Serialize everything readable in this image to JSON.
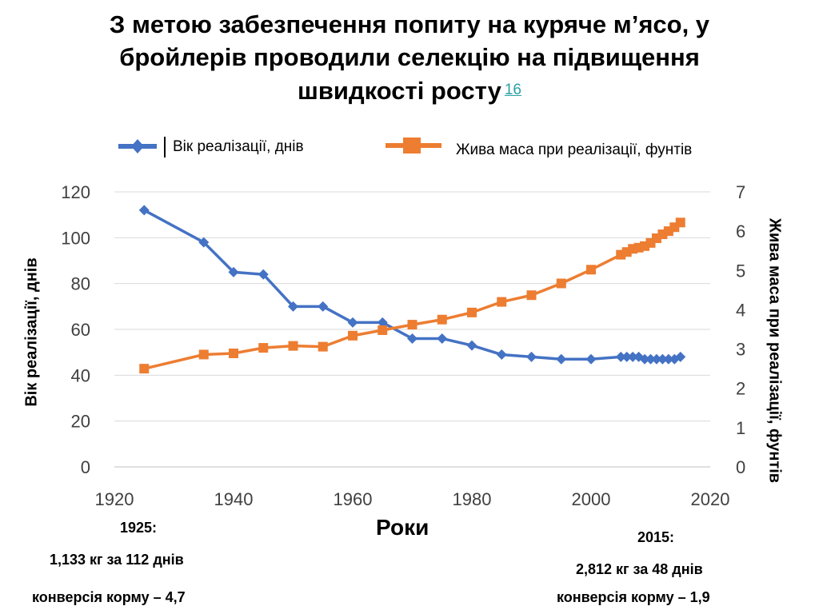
{
  "title": {
    "line1": "З метою забезпечення попиту на куряче м’ясо, у",
    "line2": "бройлерів проводили селекцію на підвищення",
    "line3": "швидкості росту",
    "ref": "16"
  },
  "notes": {
    "left_year": "1925:",
    "left_mass": "1,133 кг за 112 днів",
    "left_conv": "конверсія корму – 4,7",
    "right_year": "2015:",
    "right_mass": "2,812 кг за 48 днів",
    "right_conv": "конверсія корму – 1,9"
  },
  "colors": {
    "age": "#4472c4",
    "weight": "#ed7d31",
    "grid": "#d9d9d9",
    "ref": "#2aa1a4"
  },
  "chart_data": {
    "type": "line",
    "xlabel": "Роки",
    "ylabel": "Вік реалізації, днів",
    "y2label": "Жива маса при реалізації, фунтів",
    "xlim": [
      1920,
      2020
    ],
    "xticks": [
      1920,
      1940,
      1960,
      1980,
      2000,
      2020
    ],
    "ylim": [
      0,
      120
    ],
    "yticks": [
      0,
      20,
      40,
      60,
      80,
      100,
      120
    ],
    "y2lim": [
      0,
      7
    ],
    "y2ticks": [
      0,
      1,
      2,
      3,
      4,
      5,
      6,
      7
    ],
    "grid": true,
    "legend_position": "top",
    "series": [
      {
        "name": "Вік реалізації, днів",
        "axis": "left",
        "marker": "diamond",
        "color": "#4472c4",
        "x": [
          1925,
          1935,
          1940,
          1945,
          1950,
          1955,
          1960,
          1965,
          1970,
          1975,
          1980,
          1985,
          1990,
          1995,
          2000,
          2005,
          2006,
          2007,
          2008,
          2009,
          2010,
          2011,
          2012,
          2013,
          2014,
          2015
        ],
        "y": [
          112,
          98,
          85,
          84,
          70,
          70,
          63,
          63,
          56,
          56,
          53,
          49,
          48,
          47,
          47,
          48,
          48,
          48,
          48,
          47,
          47,
          47,
          47,
          47,
          47,
          48
        ]
      },
      {
        "name": "Жива маса при реалізації, фунтів",
        "axis": "right",
        "marker": "square",
        "color": "#ed7d31",
        "x": [
          1925,
          1935,
          1940,
          1945,
          1950,
          1955,
          1960,
          1965,
          1970,
          1975,
          1980,
          1985,
          1990,
          1995,
          2000,
          2005,
          2006,
          2007,
          2008,
          2009,
          2010,
          2011,
          2012,
          2013,
          2014,
          2015
        ],
        "y": [
          2.5,
          2.86,
          2.89,
          3.03,
          3.08,
          3.06,
          3.34,
          3.48,
          3.62,
          3.75,
          3.93,
          4.2,
          4.37,
          4.67,
          5.02,
          5.4,
          5.47,
          5.55,
          5.58,
          5.62,
          5.7,
          5.82,
          5.92,
          6.0,
          6.1,
          6.22
        ]
      }
    ]
  }
}
